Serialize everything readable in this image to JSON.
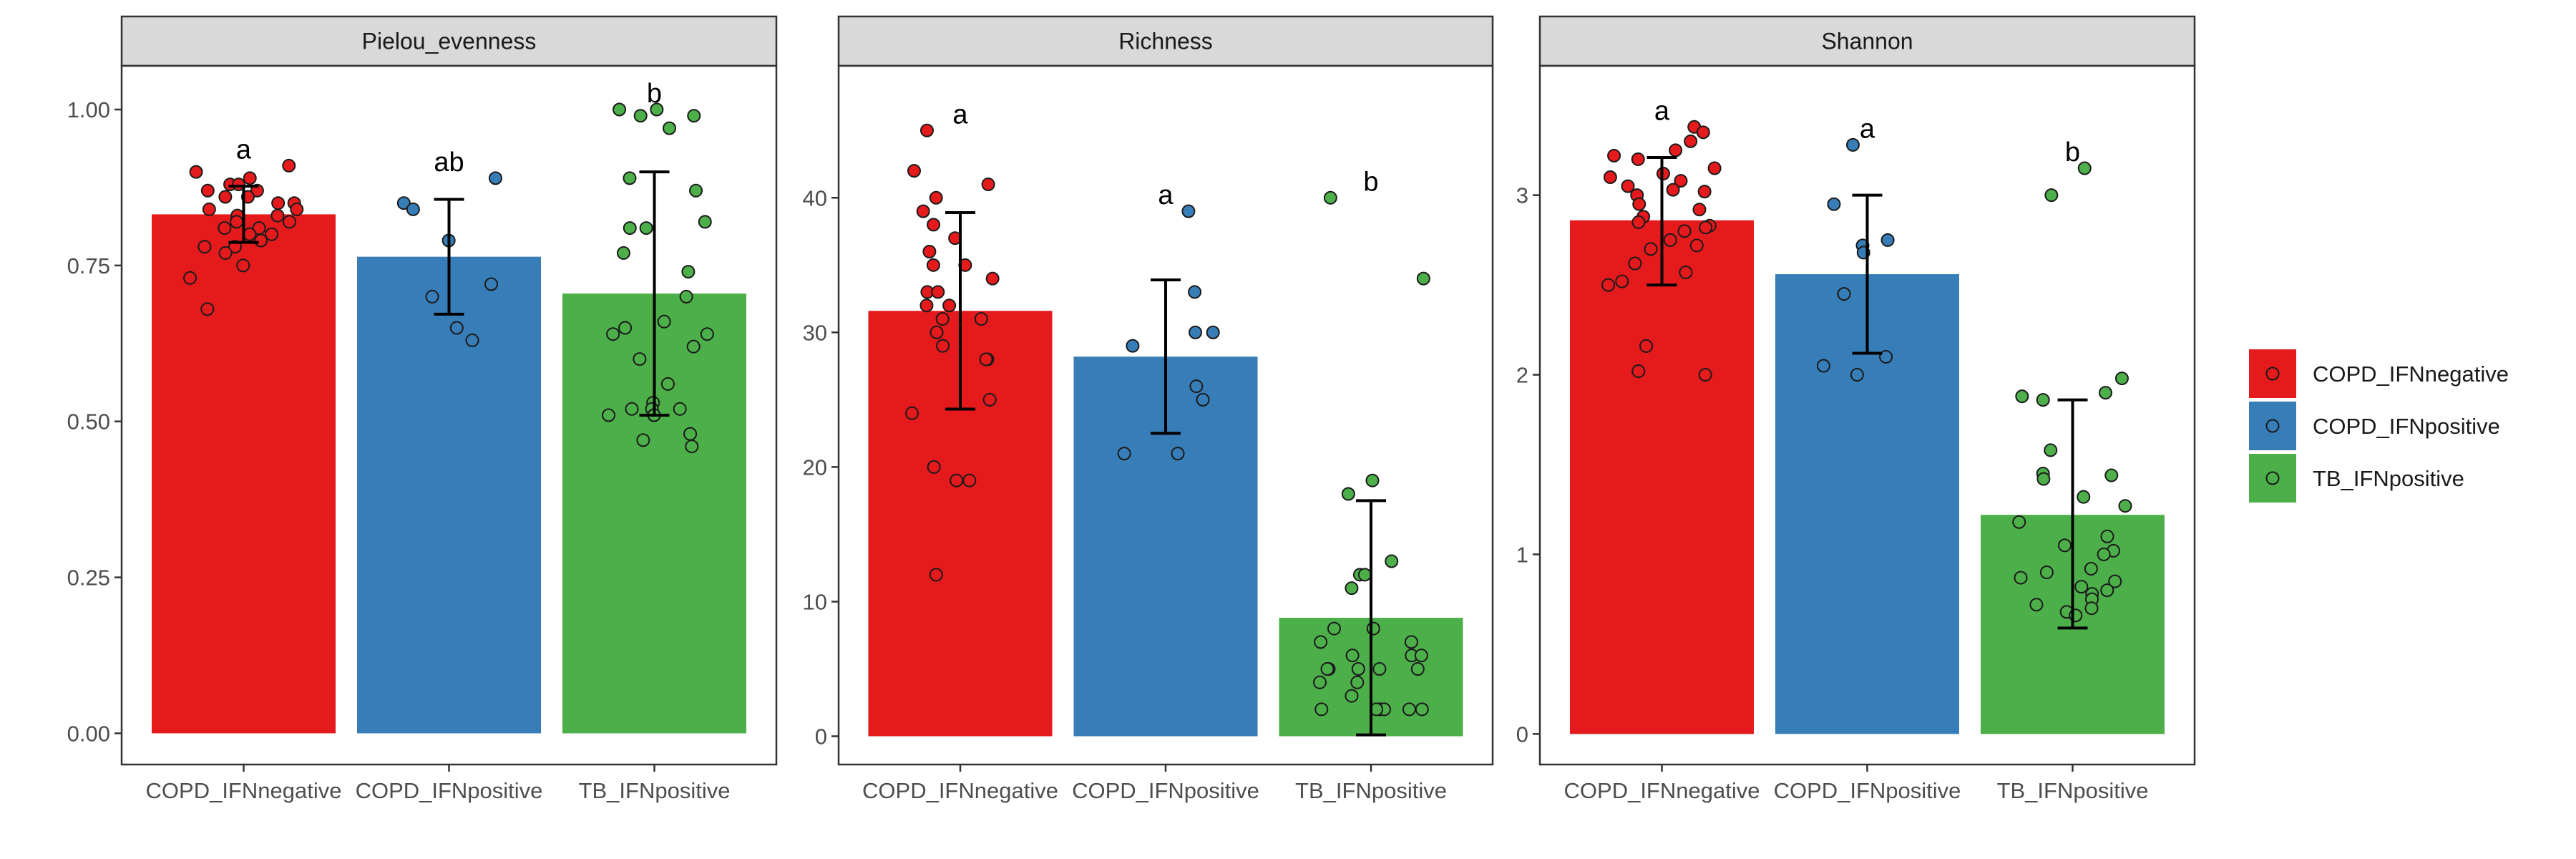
{
  "colors": {
    "COPD_IFNnegative": "#E41A1C",
    "COPD_IFNpositive": "#377EB8",
    "TB_IFNpositive": "#4DAF4A",
    "strip_fill": "#D9D9D9",
    "axis_text": "#4D4D4D",
    "panel_border": "#333333",
    "errorbar": "#000000",
    "point_outline": "#1A1A1A"
  },
  "legend": {
    "placement": "right",
    "items": [
      "COPD_IFNnegative",
      "COPD_IFNpositive",
      "TB_IFNpositive"
    ]
  },
  "chart_data": [
    {
      "type": "bar",
      "facet": "Pielou_evenness",
      "categories": [
        "COPD_IFNnegative",
        "COPD_IFNpositive",
        "TB_IFNpositive"
      ],
      "values": [
        0.832,
        0.764,
        0.705
      ],
      "error_bars": [
        [
          0.787,
          0.877
        ],
        [
          0.672,
          0.856
        ],
        [
          0.51,
          0.9
        ]
      ],
      "significance_letters": [
        "a",
        "ab",
        "b"
      ],
      "ylim": [
        -0.05,
        1.07
      ],
      "yticks": [
        0,
        0.25,
        0.5,
        0.75,
        1.0
      ],
      "ytick_labels": [
        "0.00",
        "0.25",
        "0.50",
        "0.75",
        "1.00"
      ],
      "points": [
        [
          0.91,
          0.9,
          0.89,
          0.88,
          0.88,
          0.87,
          0.87,
          0.86,
          0.86,
          0.85,
          0.85,
          0.84,
          0.84,
          0.83,
          0.83,
          0.82,
          0.82,
          0.81,
          0.81,
          0.8,
          0.8,
          0.79,
          0.78,
          0.78,
          0.77,
          0.75,
          0.73,
          0.68
        ],
        [
          0.89,
          0.85,
          0.84,
          0.79,
          0.72,
          0.7,
          0.65,
          0.63
        ],
        [
          1.0,
          1.0,
          0.99,
          0.99,
          0.97,
          0.89,
          0.87,
          0.82,
          0.81,
          0.81,
          0.77,
          0.74,
          0.7,
          0.66,
          0.65,
          0.64,
          0.64,
          0.62,
          0.6,
          0.56,
          0.53,
          0.52,
          0.52,
          0.52,
          0.51,
          0.51,
          0.51,
          0.48,
          0.47,
          0.46
        ]
      ]
    },
    {
      "type": "bar",
      "facet": "Richness",
      "categories": [
        "COPD_IFNnegative",
        "COPD_IFNpositive",
        "TB_IFNpositive"
      ],
      "values": [
        31.6,
        28.2,
        8.8
      ],
      "error_bars": [
        [
          24.3,
          38.9
        ],
        [
          22.5,
          33.9
        ],
        [
          0.1,
          17.5
        ]
      ],
      "significance_letters": [
        "a",
        "a",
        "b"
      ],
      "ylim": [
        -2.1,
        49.8
      ],
      "yticks": [
        0,
        10,
        20,
        30,
        40
      ],
      "ytick_labels": [
        "0",
        "10",
        "20",
        "30",
        "40"
      ],
      "points": [
        [
          45,
          42,
          41,
          40,
          39,
          38,
          37,
          36,
          35,
          35,
          34,
          33,
          33,
          32,
          32,
          31,
          31,
          30,
          29,
          28,
          28,
          25,
          24,
          20,
          19,
          19,
          12
        ],
        [
          39,
          33,
          30,
          30,
          29,
          26,
          25,
          21,
          21
        ],
        [
          40,
          34,
          19,
          18,
          13,
          12,
          12,
          11,
          8,
          8,
          7,
          7,
          6,
          6,
          6,
          5,
          5,
          5,
          5,
          5,
          4,
          4,
          3,
          2,
          2,
          2,
          2,
          2,
          2
        ]
      ]
    },
    {
      "type": "bar",
      "facet": "Shannon",
      "categories": [
        "COPD_IFNnegative",
        "COPD_IFNpositive",
        "TB_IFNpositive"
      ],
      "values": [
        2.86,
        2.56,
        1.22
      ],
      "error_bars": [
        [
          2.5,
          3.21
        ],
        [
          2.12,
          3.0
        ],
        [
          0.59,
          1.86
        ]
      ],
      "significance_letters": [
        "a",
        "a",
        "b"
      ],
      "ylim": [
        -0.17,
        3.72
      ],
      "yticks": [
        0,
        1,
        2,
        3
      ],
      "ytick_labels": [
        "0",
        "1",
        "2",
        "3"
      ],
      "points": [
        [
          3.38,
          3.35,
          3.3,
          3.25,
          3.22,
          3.2,
          3.15,
          3.12,
          3.1,
          3.08,
          3.05,
          3.03,
          3.02,
          3.0,
          2.95,
          2.92,
          2.88,
          2.85,
          2.83,
          2.82,
          2.8,
          2.75,
          2.72,
          2.7,
          2.62,
          2.57,
          2.52,
          2.5,
          2.16,
          2.02,
          2.0
        ],
        [
          3.28,
          2.95,
          2.75,
          2.72,
          2.68,
          2.45,
          2.1,
          2.05,
          2.0
        ],
        [
          3.15,
          3.0,
          1.98,
          1.9,
          1.88,
          1.86,
          1.58,
          1.45,
          1.44,
          1.42,
          1.32,
          1.27,
          1.18,
          1.1,
          1.05,
          1.02,
          1.0,
          0.92,
          0.9,
          0.87,
          0.85,
          0.82,
          0.8,
          0.78,
          0.75,
          0.72,
          0.7,
          0.68,
          0.66
        ]
      ]
    }
  ]
}
